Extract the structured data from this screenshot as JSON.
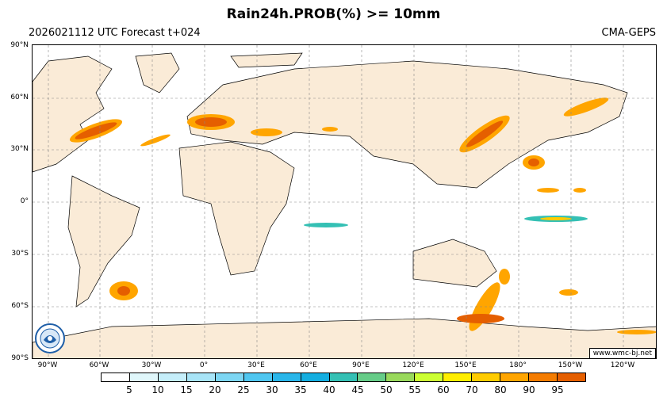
{
  "header": {
    "title": "Rain24h.PROB(%) >= 10mm",
    "forecast": "2026021112 UTC Forecast t+024",
    "model": "CMA-GEPS"
  },
  "map": {
    "lat_labels": [
      "90°N",
      "60°N",
      "30°N",
      "0°",
      "30°S",
      "60°S",
      "90°S"
    ],
    "lon_labels": [
      "90°W",
      "60°W",
      "30°W",
      "0°",
      "30°E",
      "60°E",
      "90°E",
      "120°E",
      "150°E",
      "180°",
      "150°W",
      "120°W"
    ],
    "ocean_color": "#ffffff",
    "land_color": "#faebd7",
    "grid": "dashed"
  },
  "colorbar": {
    "ticks": [
      "5",
      "10",
      "15",
      "20",
      "25",
      "30",
      "35",
      "40",
      "45",
      "50",
      "55",
      "60",
      "70",
      "80",
      "90",
      "95"
    ],
    "colors": [
      "#ffffff",
      "#e0f7fb",
      "#c5eefa",
      "#a8e4f7",
      "#7dd6f3",
      "#4fc6f0",
      "#29b6ea",
      "#14aee0",
      "#34c0b4",
      "#66cc88",
      "#99d95c",
      "#ccff33",
      "#ffee00",
      "#ffcc00",
      "#ffa500",
      "#f47c00",
      "#e55f00"
    ]
  },
  "footer": {
    "url": "www.wmc-bj.net"
  }
}
